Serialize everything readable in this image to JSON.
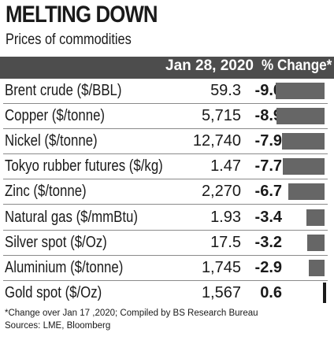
{
  "title": "MELTING DOWN",
  "subtitle": "Prices of commodities",
  "header": {
    "date": "Jan 28, 2020",
    "change": "% Change*"
  },
  "footnote": "*Change over Jan 17 ,2020; Compiled by BS Research Bureau",
  "sources": "Sources: LME, Bloomberg",
  "colors": {
    "header_bg": "#4d4d4d",
    "bar_negative": "#666666",
    "bar_positive": "#1a1a1a"
  },
  "chart_data": {
    "type": "table",
    "columns": [
      "",
      "Jan 28, 2020",
      "% Change*"
    ],
    "rows": [
      {
        "name": "Brent crude  ($/BBL)",
        "price": "59.3",
        "change": "-9.0",
        "value": -9.0
      },
      {
        "name": "Copper  ($/tonne)",
        "price": "5,715",
        "change": "-8.9",
        "value": -8.9
      },
      {
        "name": "Nickel ($/tonne)",
        "price": "12,740",
        "change": "-7.9",
        "value": -7.9
      },
      {
        "name": "Tokyo rubber futures ($/kg)",
        "price": "1.47",
        "change": "-7.7",
        "value": -7.7
      },
      {
        "name": "Zinc ($/tonne)",
        "price": "2,270",
        "change": "-6.7",
        "value": -6.7
      },
      {
        "name": "Natural gas ($/mmBtu)",
        "price": "1.93",
        "change": "-3.4",
        "value": -3.4
      },
      {
        "name": "Silver spot ($/Oz)",
        "price": "17.5",
        "change": "-3.2",
        "value": -3.2
      },
      {
        "name": "Aluminium ($/tonne)",
        "price": "1,745",
        "change": "-2.9",
        "value": -2.9
      },
      {
        "name": "Gold spot ($/Oz)",
        "price": "1,567",
        "change": "0.6",
        "value": 0.6
      }
    ]
  }
}
